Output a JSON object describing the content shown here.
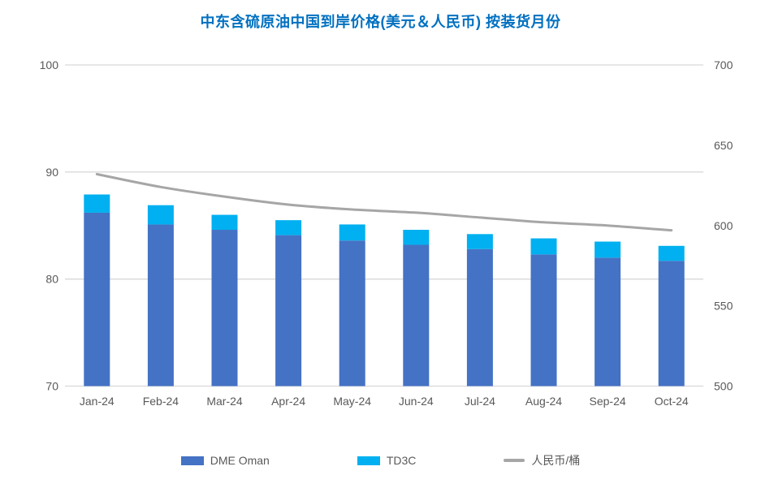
{
  "chart": {
    "title": "中东含硫原油中国到岸价格(美元＆人民币) 按装货月份",
    "colors": {
      "dme_oman": "#4472C4",
      "td3c": "#00B0F0",
      "rmb_line": "#A6A6A6",
      "grid": "#D9D9D9",
      "axis_text": "#595959",
      "title_text": "#0070C0",
      "background": "#FFFFFF"
    },
    "chart_data": {
      "type": "combo (stacked bar + line)",
      "categories": [
        "Jan-24",
        "Feb-24",
        "Mar-24",
        "Apr-24",
        "May-24",
        "Jun-24",
        "Jul-24",
        "Aug-24",
        "Sep-24",
        "Oct-24"
      ],
      "series": [
        {
          "name": "DME Oman",
          "type": "bar",
          "stacked": true,
          "yaxis": "left",
          "color_key": "dme_oman",
          "values": [
            86.2,
            85.1,
            84.6,
            84.1,
            83.6,
            83.2,
            82.8,
            82.3,
            82.0,
            81.7
          ]
        },
        {
          "name": "TD3C",
          "type": "bar",
          "stacked": true,
          "yaxis": "left",
          "color_key": "td3c",
          "values": [
            1.7,
            1.8,
            1.4,
            1.4,
            1.5,
            1.4,
            1.4,
            1.5,
            1.5,
            1.4
          ]
        },
        {
          "name": "人民币/桶",
          "type": "line",
          "smooth": true,
          "yaxis": "right",
          "color_key": "rmb_line",
          "values": [
            632,
            624,
            618,
            613,
            610,
            608,
            605,
            602,
            600,
            597
          ]
        }
      ],
      "stacked_totals": [
        87.9,
        86.9,
        86.0,
        85.5,
        85.1,
        84.6,
        84.2,
        83.8,
        83.5,
        83.1
      ],
      "left_axis": {
        "min": 70,
        "max": 100,
        "ticks": [
          100,
          90,
          80,
          70
        ]
      },
      "right_axis": {
        "min": 500,
        "max": 700,
        "ticks": [
          700,
          650,
          600,
          550,
          500
        ]
      },
      "grid": true,
      "legend_position": "bottom"
    }
  }
}
